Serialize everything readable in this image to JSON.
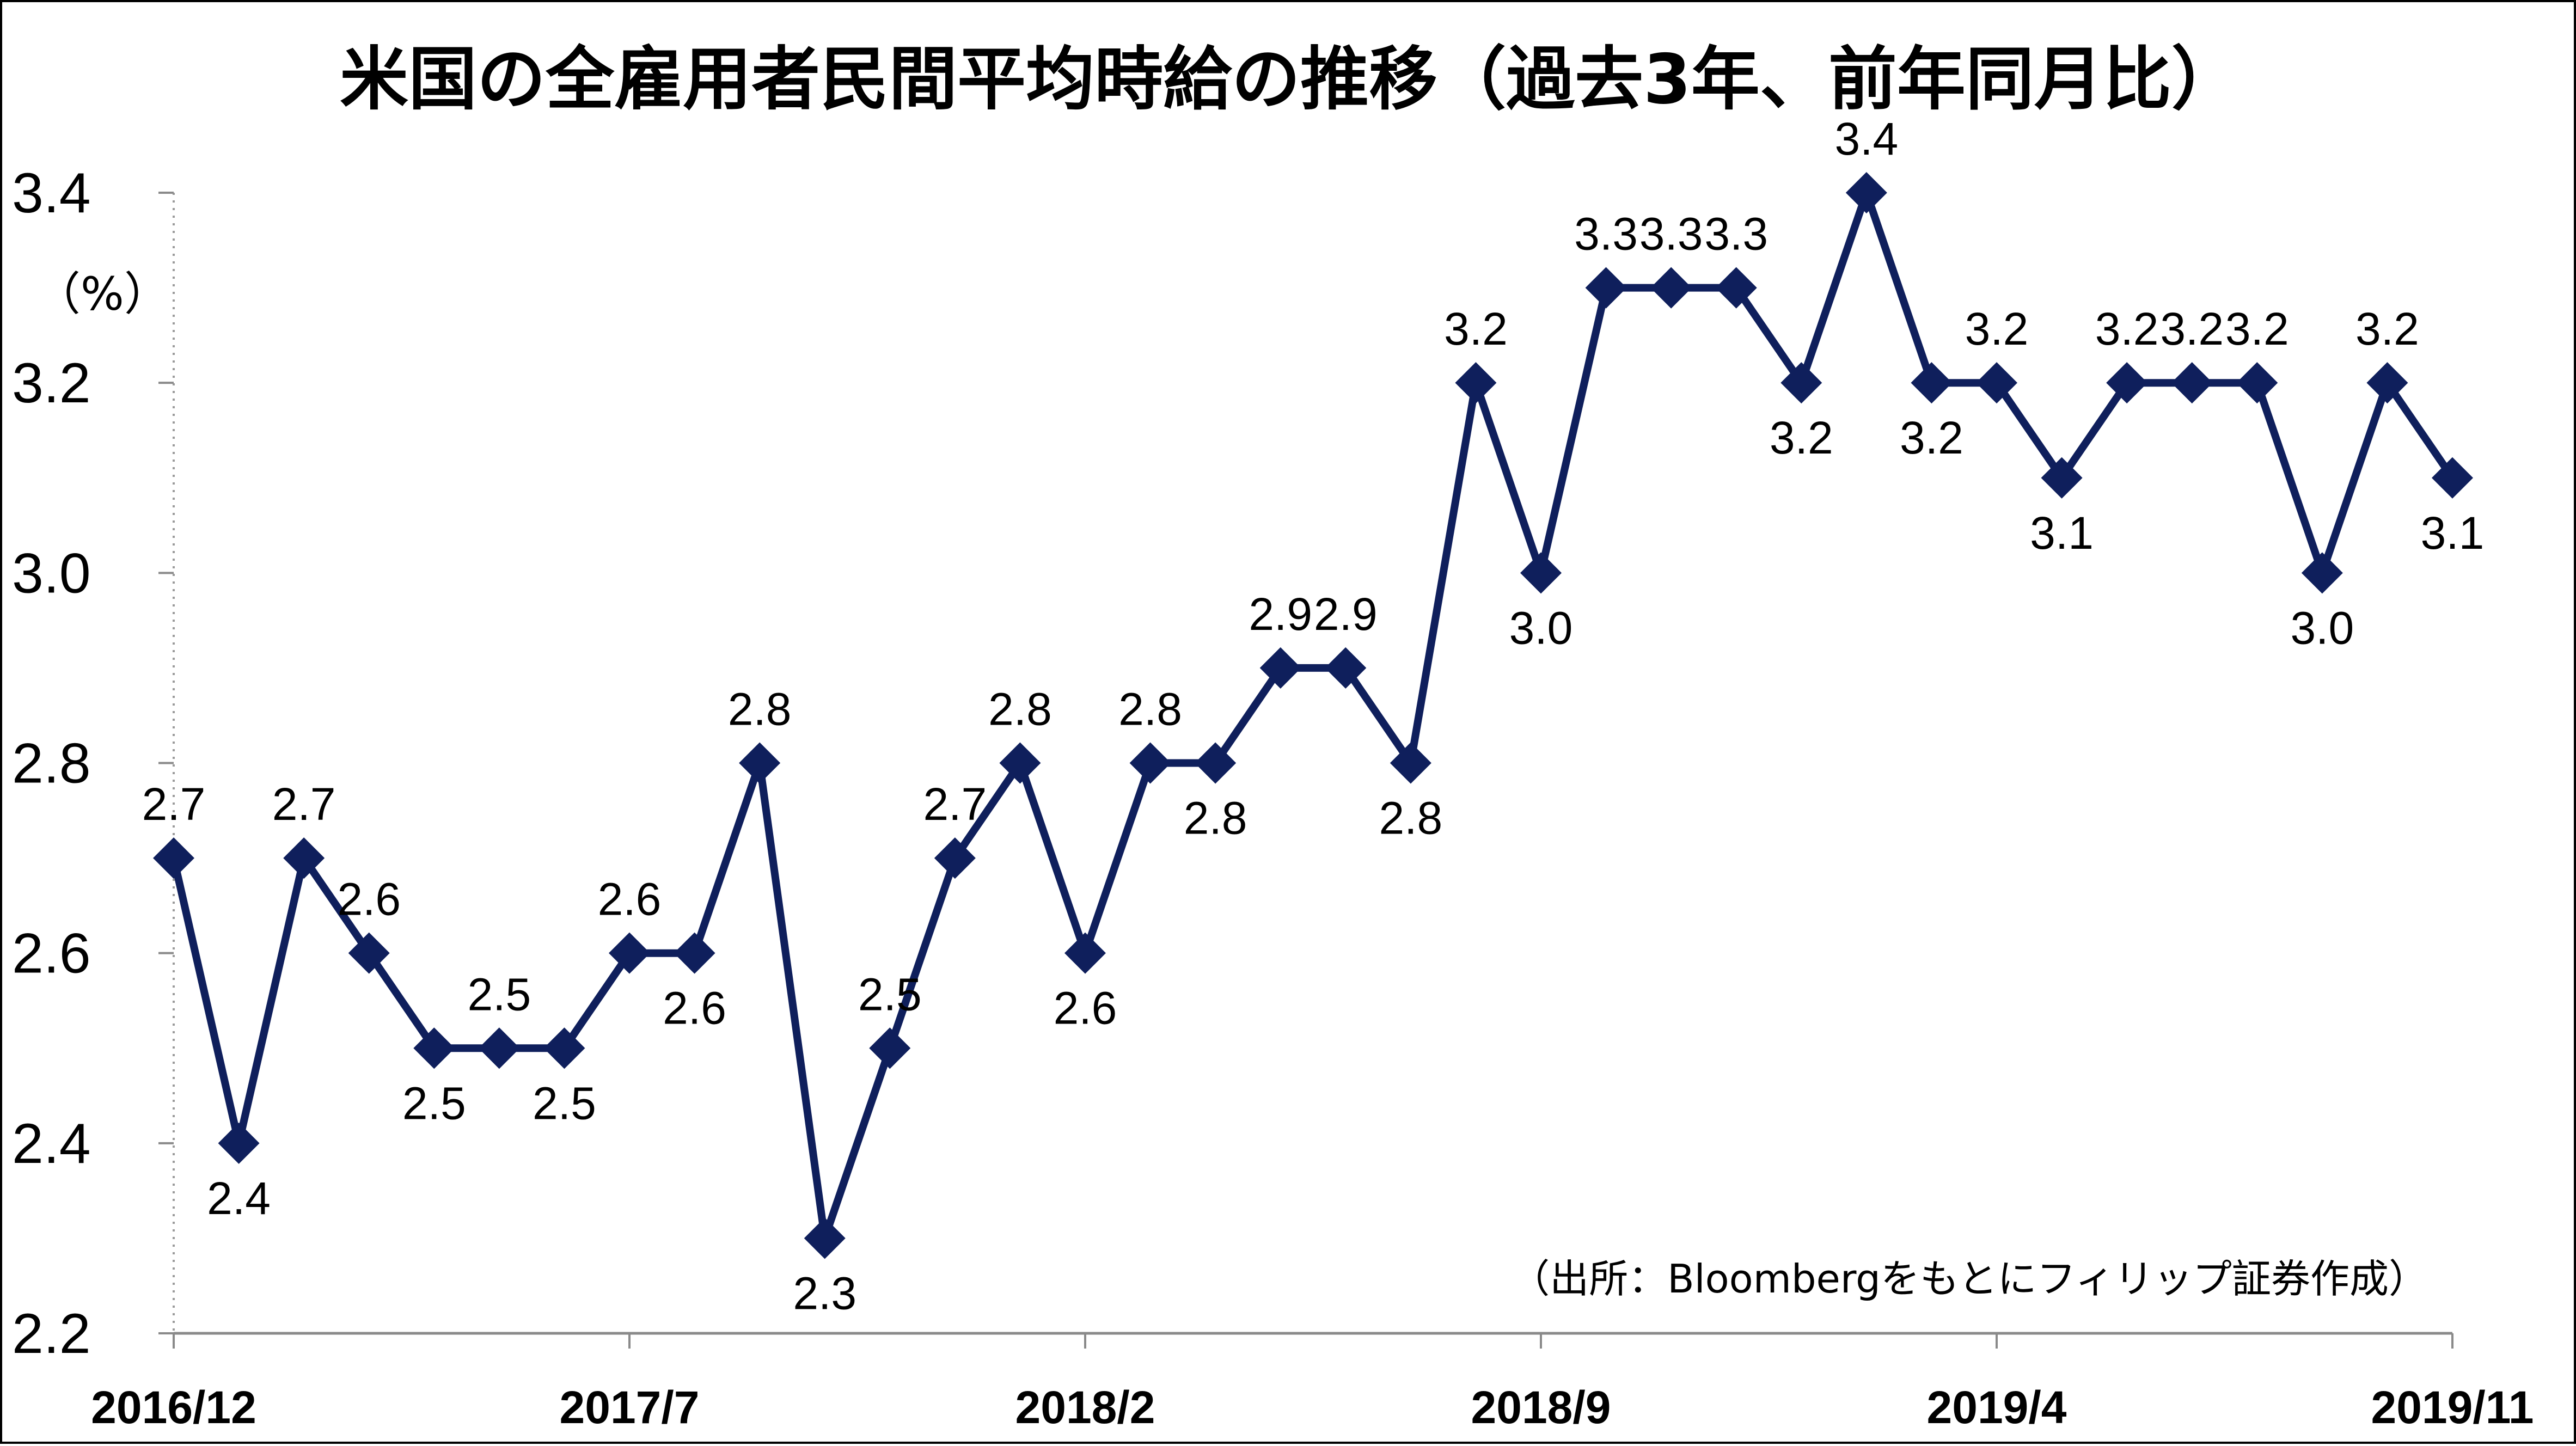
{
  "chart_data": {
    "type": "line",
    "title": "米国の全雇用者民間平均時給の推移（過去3年、前年同月比）",
    "ylabel": "（%）",
    "source_note": "（出所：Bloombergをもとにフィリップ証券作成）",
    "ylim": [
      2.2,
      3.4
    ],
    "y_ticks": [
      "2.2",
      "2.4",
      "2.6",
      "2.8",
      "3.0",
      "3.2",
      "3.4"
    ],
    "x_tick_labels": [
      "2016/12",
      "2017/7",
      "2018/2",
      "2018/9",
      "2019/4",
      "2019/11"
    ],
    "x": [
      "2016/12",
      "2017/1",
      "2017/2",
      "2017/3",
      "2017/4",
      "2017/5",
      "2017/6",
      "2017/7",
      "2017/8",
      "2017/9",
      "2017/10",
      "2017/11",
      "2017/12",
      "2018/1",
      "2018/2",
      "2018/3",
      "2018/4",
      "2018/5",
      "2018/6",
      "2018/7",
      "2018/8",
      "2018/9",
      "2018/10",
      "2018/11",
      "2018/12",
      "2019/1",
      "2019/2",
      "2019/3",
      "2019/4",
      "2019/5",
      "2019/6",
      "2019/7",
      "2019/8",
      "2019/9",
      "2019/10",
      "2019/11"
    ],
    "series": [
      {
        "values": [
          2.7,
          2.4,
          2.7,
          2.6,
          2.5,
          2.5,
          2.5,
          2.6,
          2.6,
          2.8,
          2.3,
          2.5,
          2.7,
          2.8,
          2.6,
          2.8,
          2.8,
          2.9,
          2.9,
          2.8,
          3.2,
          3.0,
          3.3,
          3.3,
          3.3,
          3.2,
          3.4,
          3.2,
          3.2,
          3.1,
          3.2,
          3.2,
          3.2,
          3.0,
          3.2,
          3.1
        ],
        "data_labels": [
          "2.7",
          "2.4",
          "2.7",
          "2.6",
          "2.5",
          "2.5",
          "2.5",
          "2.6",
          "2.6",
          "2.8",
          "2.3",
          "2.5",
          "2.7",
          "2.8",
          "2.6",
          "2.8",
          "2.8",
          "2.9",
          "2.9",
          "2.8",
          "3.2",
          "3.0",
          "3.3",
          "3.3",
          "3.3",
          "3.2",
          "3.4",
          "3.2",
          "3.2",
          "3.1",
          "3.2",
          "3.2",
          "3.2",
          "3.0",
          "3.2",
          "3.1"
        ]
      }
    ],
    "line_color": "#0f1f5c",
    "grid": false,
    "legend": "none"
  }
}
